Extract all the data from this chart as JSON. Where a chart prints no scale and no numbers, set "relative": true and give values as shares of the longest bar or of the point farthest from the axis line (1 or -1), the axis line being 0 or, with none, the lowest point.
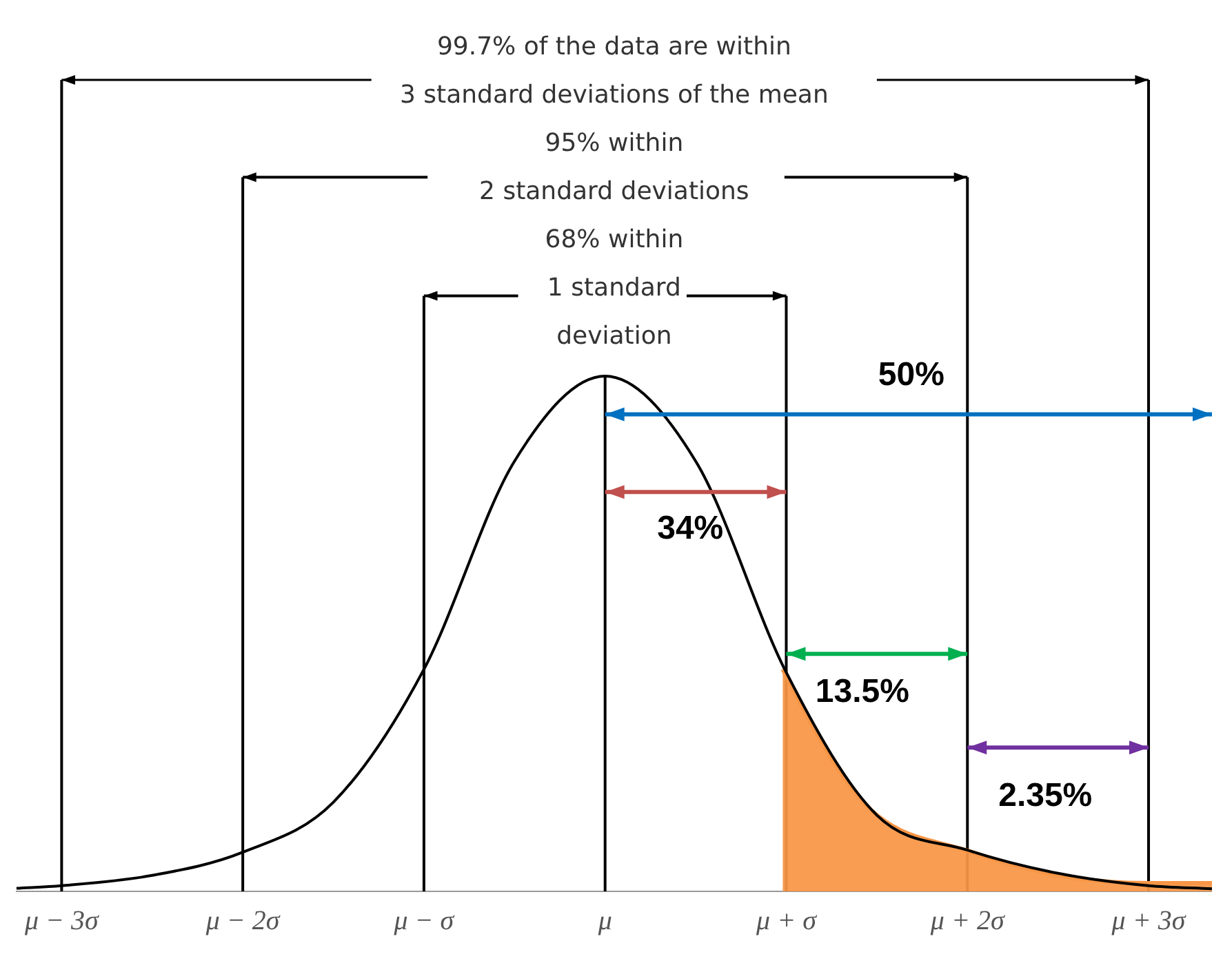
{
  "chart_data": {
    "type": "line",
    "relative": true,
    "xlim": [
      -3.25,
      3.35
    ],
    "xticks": [
      {
        "value": -3,
        "label": "μ − 3σ"
      },
      {
        "value": -2,
        "label": "μ − 2σ"
      },
      {
        "value": -1,
        "label": "μ − σ"
      },
      {
        "value": 0,
        "label": "μ"
      },
      {
        "value": 1,
        "label": "μ + σ"
      },
      {
        "value": 2,
        "label": "μ + 2σ"
      },
      {
        "value": 3,
        "label": "μ + 3σ"
      }
    ],
    "tick_labels": "x",
    "grid": false,
    "legend": false,
    "line_style": "solid",
    "series": [
      {
        "type": "area",
        "color": "#f79646",
        "x": [
          0.98,
          1.25,
          1.5,
          2,
          2.5,
          3,
          3.35
        ],
        "values": [
          0.431,
          0.257,
          0.148,
          0.079,
          0.031,
          0.016,
          0.016
        ]
      },
      {
        "type": "line",
        "color": "#000000",
        "x": [
          -3.25,
          -3,
          -2.5,
          -2,
          -1.5,
          -1,
          -0.5,
          0,
          0.5,
          1,
          1.5,
          2,
          2.5,
          3,
          3.35
        ],
        "values": [
          0.006,
          0.011,
          0.031,
          0.076,
          0.173,
          0.431,
          0.835,
          1,
          0.835,
          0.425,
          0.148,
          0.08,
          0.035,
          0.011,
          0.005
        ]
      }
    ],
    "ref_lines": [
      {
        "axis": "x",
        "value": -3,
        "color": "#000000"
      },
      {
        "axis": "x",
        "value": -2,
        "color": "#000000"
      },
      {
        "axis": "x",
        "value": -1,
        "color": "#000000"
      },
      {
        "axis": "x",
        "value": 0,
        "color": "#000000"
      },
      {
        "axis": "x",
        "value": 1,
        "color": "#000000"
      },
      {
        "axis": "x",
        "value": 2,
        "color": "#000000"
      },
      {
        "axis": "x",
        "value": 3,
        "color": "#000000"
      }
    ],
    "annotations": [
      "99.7% of the data are within",
      "3 standard deviations of the mean",
      "95% within",
      "2 standard deviations",
      "68% within",
      "1 standard",
      "deviation",
      "50%",
      "34%",
      "13.5%",
      "2.35%"
    ]
  }
}
